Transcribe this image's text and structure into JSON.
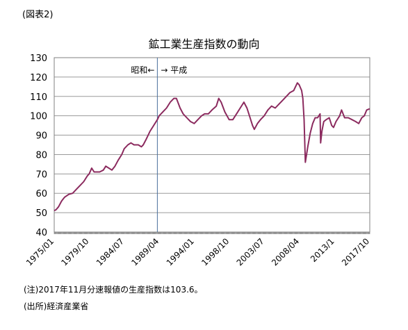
{
  "figure_label": "(図表2)",
  "notes": {
    "note_1": "(注)2017年11月分速報値の生産指数は103.6。",
    "note_2": "(出所)経済産業省"
  },
  "chart_data": {
    "type": "line",
    "title": "鉱工業生産指数の動向",
    "xlabel": "",
    "ylabel": "",
    "ylim": [
      40,
      130
    ],
    "yticks": [
      40,
      50,
      60,
      70,
      80,
      90,
      100,
      110,
      120,
      130
    ],
    "x_start": "1975/01",
    "x_end": "2017/11",
    "x_tick_labels": [
      "1975/01",
      "1979/10",
      "1984/07",
      "1989/04",
      "1994/01",
      "1998/10",
      "2003/07",
      "2008/04",
      "2013/1",
      "2017/10"
    ],
    "grid": true,
    "legend": "none",
    "line_color": "#8b2a5e",
    "annotations": [
      {
        "text": "昭和←",
        "side": "left"
      },
      {
        "text": "→ 平成",
        "side": "right"
      }
    ],
    "divider_date": "1989/01",
    "series": [
      {
        "values": [
          [
            "1975/01",
            51
          ],
          [
            "1975/04",
            51.5
          ],
          [
            "1975/08",
            53
          ],
          [
            "1976/01",
            56
          ],
          [
            "1976/06",
            58
          ],
          [
            "1977/01",
            59.5
          ],
          [
            "1977/07",
            60
          ],
          [
            "1978/01",
            62
          ],
          [
            "1978/07",
            64
          ],
          [
            "1979/01",
            66
          ],
          [
            "1979/07",
            69
          ],
          [
            "1979/10",
            70
          ],
          [
            "1980/02",
            73
          ],
          [
            "1980/06",
            71
          ],
          [
            "1980/10",
            71
          ],
          [
            "1981/03",
            71
          ],
          [
            "1981/09",
            72
          ],
          [
            "1982/01",
            74
          ],
          [
            "1982/06",
            73
          ],
          [
            "1982/11",
            72
          ],
          [
            "1983/04",
            74
          ],
          [
            "1983/09",
            77
          ],
          [
            "1984/03",
            80
          ],
          [
            "1984/07",
            83
          ],
          [
            "1985/01",
            85
          ],
          [
            "1985/06",
            86
          ],
          [
            "1985/11",
            85
          ],
          [
            "1986/06",
            85
          ],
          [
            "1986/11",
            84
          ],
          [
            "1987/02",
            85
          ],
          [
            "1987/07",
            88
          ],
          [
            "1988/01",
            92
          ],
          [
            "1988/07",
            95
          ],
          [
            "1989/01",
            98
          ],
          [
            "1989/04",
            100
          ],
          [
            "1989/10",
            102
          ],
          [
            "1990/04",
            104
          ],
          [
            "1990/10",
            107
          ],
          [
            "1991/04",
            109
          ],
          [
            "1991/08",
            109
          ],
          [
            "1992/02",
            104
          ],
          [
            "1992/07",
            101
          ],
          [
            "1993/01",
            99
          ],
          [
            "1993/07",
            97
          ],
          [
            "1994/01",
            96
          ],
          [
            "1994/07",
            98
          ],
          [
            "1995/01",
            100
          ],
          [
            "1995/06",
            101
          ],
          [
            "1995/12",
            101
          ],
          [
            "1996/06",
            103
          ],
          [
            "1997/01",
            105
          ],
          [
            "1997/05",
            109
          ],
          [
            "1997/09",
            107
          ],
          [
            "1998/03",
            102
          ],
          [
            "1998/10",
            98
          ],
          [
            "1999/04",
            98
          ],
          [
            "1999/10",
            101
          ],
          [
            "2000/04",
            104
          ],
          [
            "2000/10",
            107
          ],
          [
            "2001/03",
            104
          ],
          [
            "2001/08",
            99
          ],
          [
            "2001/12",
            95
          ],
          [
            "2002/03",
            93
          ],
          [
            "2002/08",
            96
          ],
          [
            "2003/01",
            98
          ],
          [
            "2003/07",
            100
          ],
          [
            "2004/01",
            103
          ],
          [
            "2004/07",
            105
          ],
          [
            "2005/01",
            104
          ],
          [
            "2005/07",
            106
          ],
          [
            "2006/01",
            108
          ],
          [
            "2006/07",
            110
          ],
          [
            "2007/01",
            112
          ],
          [
            "2007/07",
            113
          ],
          [
            "2008/01",
            117
          ],
          [
            "2008/04",
            116
          ],
          [
            "2008/08",
            113
          ],
          [
            "2008/10",
            109
          ],
          [
            "2008/12",
            98
          ],
          [
            "2009/02",
            76
          ],
          [
            "2009/06",
            84
          ],
          [
            "2009/10",
            91
          ],
          [
            "2010/02",
            96
          ],
          [
            "2010/06",
            99
          ],
          [
            "2010/10",
            99
          ],
          [
            "2011/02",
            101
          ],
          [
            "2011/03",
            86
          ],
          [
            "2011/05",
            92
          ],
          [
            "2011/08",
            97
          ],
          [
            "2011/12",
            98
          ],
          [
            "2012/05",
            99
          ],
          [
            "2012/09",
            95
          ],
          [
            "2012/12",
            94
          ],
          [
            "2013/04",
            97
          ],
          [
            "2013/10",
            100
          ],
          [
            "2014/01",
            103
          ],
          [
            "2014/06",
            99
          ],
          [
            "2014/12",
            99
          ],
          [
            "2015/06",
            98
          ],
          [
            "2015/12",
            97
          ],
          [
            "2016/05",
            96
          ],
          [
            "2016/10",
            99
          ],
          [
            "2017/02",
            100
          ],
          [
            "2017/06",
            103
          ],
          [
            "2017/11",
            103.6
          ]
        ]
      }
    ]
  }
}
